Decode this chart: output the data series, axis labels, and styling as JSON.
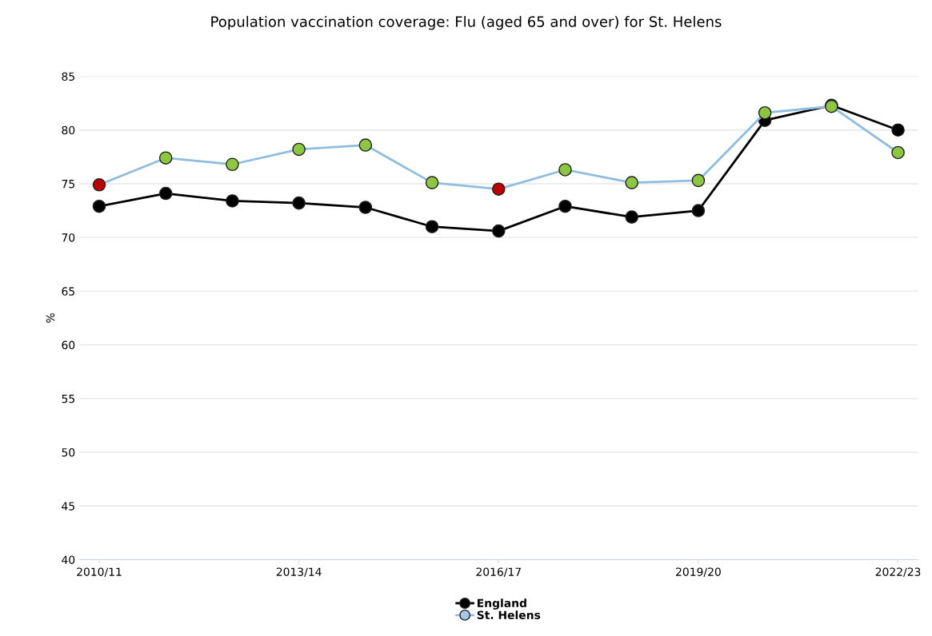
{
  "chart_data": {
    "type": "line",
    "title": "Population vaccination coverage: Flu (aged 65 and over) for St. Helens",
    "ylabel": "%",
    "categories": [
      "2010/11",
      null,
      null,
      "2013/14",
      null,
      null,
      "2016/17",
      null,
      null,
      "2019/20",
      null,
      null,
      "2022/23"
    ],
    "series": [
      {
        "name": "England",
        "color": "#000000",
        "values": [
          72.9,
          74.1,
          73.4,
          73.2,
          72.8,
          71.0,
          70.6,
          72.9,
          71.9,
          72.5,
          80.9,
          82.3,
          80.0
        ]
      },
      {
        "name": "St. Helens",
        "color": "#8fbde0",
        "colors": [
          "#c00000",
          "#8dc63f",
          "#8dc63f",
          "#8dc63f",
          "#8dc63f",
          "#8dc63f",
          "#c00000",
          "#8dc63f",
          "#8dc63f",
          "#8dc63f",
          "#8dc63f",
          "#8dc63f",
          "#8dc63f"
        ],
        "values": [
          74.9,
          77.4,
          76.8,
          78.2,
          78.6,
          75.1,
          74.5,
          76.3,
          75.1,
          75.3,
          81.6,
          82.2,
          77.9
        ]
      }
    ],
    "ylim": [
      40,
      85
    ],
    "yticks": [
      40,
      45,
      50,
      55,
      60,
      65,
      70,
      75,
      80,
      85
    ],
    "grid": "y",
    "legend": "bottom",
    "marker": "circle",
    "line_style": "solid"
  }
}
